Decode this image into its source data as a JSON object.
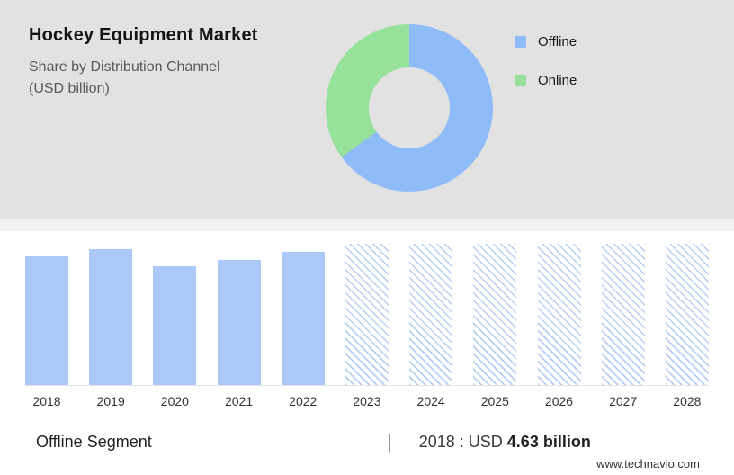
{
  "header": {
    "title": "Hockey Equipment Market",
    "subtitle_line1": "Share by Distribution Channel",
    "subtitle_line2": "(USD billion)"
  },
  "chart_data": [
    {
      "type": "pie",
      "labels": [
        "Offline",
        "Online"
      ],
      "values_pct": [
        65,
        35
      ],
      "colors": [
        "#8fbcf8",
        "#97e29b"
      ],
      "hole_ratio": 0.48,
      "legend_position": "right"
    },
    {
      "type": "bar",
      "categories": [
        "2018",
        "2019",
        "2020",
        "2021",
        "2022",
        "2023",
        "2024",
        "2025",
        "2026",
        "2027",
        "2028"
      ],
      "values": [
        4.63,
        4.92,
        4.28,
        4.53,
        4.82,
        null,
        null,
        null,
        null,
        null,
        null
      ],
      "forecast_categories": [
        "2023",
        "2024",
        "2025",
        "2026",
        "2027",
        "2028"
      ],
      "forecast_full_height": true,
      "ylim": [
        0,
        5.1
      ],
      "ylabel": "USD billion",
      "bar_color": "#aac9f8",
      "forecast_hatch_color": "#b6cef2",
      "grid": false,
      "legend_position": "none"
    }
  ],
  "footer": {
    "segment_label": "Offline Segment",
    "separator": "|",
    "stat_year_prefix": "2018 : USD",
    "stat_value": "4.63 billion",
    "website": "www.technavio.com"
  }
}
